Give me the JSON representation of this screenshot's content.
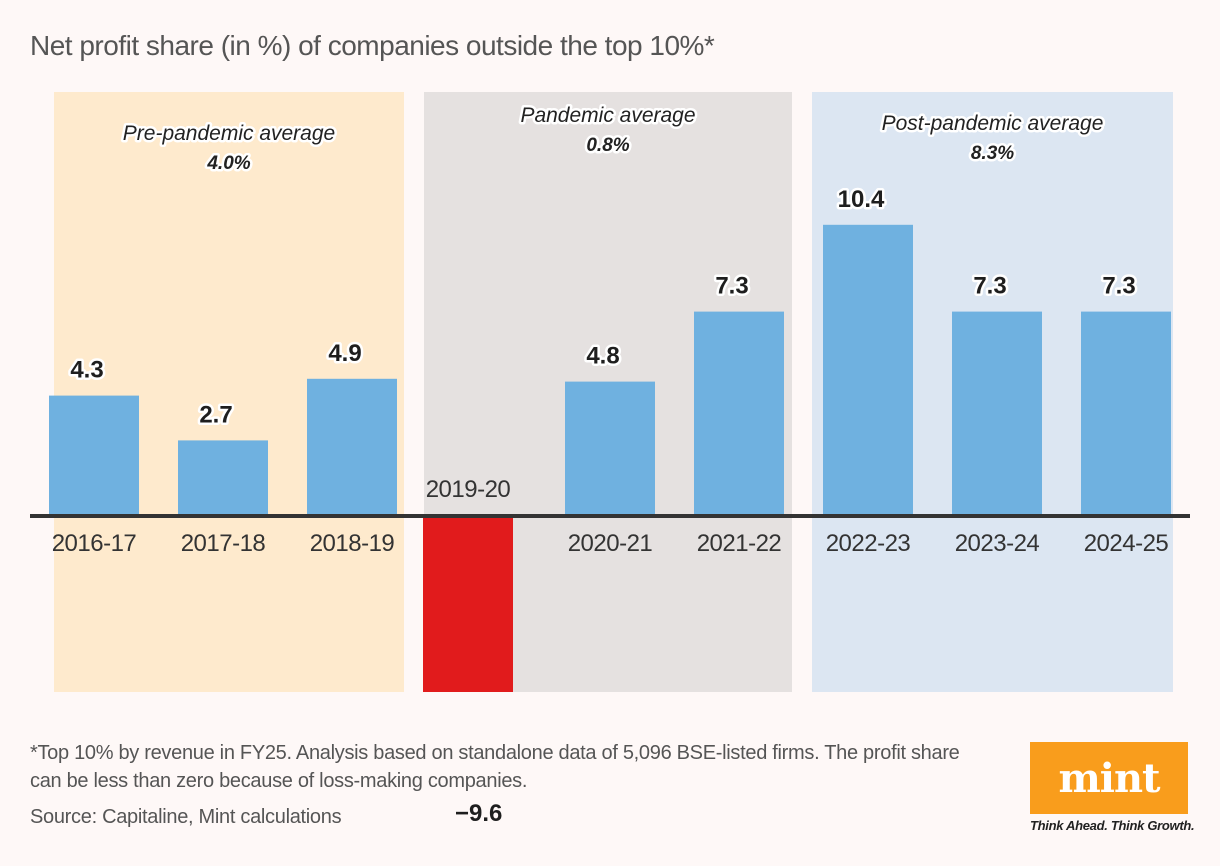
{
  "chart_data": {
    "type": "bar",
    "title": "Net profit share (in %) of companies outside the top 10%*",
    "xlabel": "",
    "ylabel": "",
    "ylim": [
      -9.6,
      10.4
    ],
    "grid": false,
    "categories": [
      "2016-17",
      "2017-18",
      "2018-19",
      "2019-20",
      "2020-21",
      "2021-22",
      "2022-23",
      "2023-24",
      "2024-25"
    ],
    "values": [
      4.3,
      2.7,
      4.9,
      -9.6,
      4.8,
      7.3,
      10.4,
      7.3,
      7.3
    ],
    "value_labels": [
      "4.3",
      "2.7",
      "4.9",
      "−9.6",
      "4.8",
      "7.3",
      "10.4",
      "7.3",
      "7.3"
    ],
    "periods": [
      {
        "name": "Pre-pandemic average",
        "average": "4.0%",
        "categories": [
          "2016-17",
          "2017-18",
          "2018-19"
        ],
        "color": "#feeacd"
      },
      {
        "name": "Pandemic average",
        "average": "0.8%",
        "categories": [
          "2019-20",
          "2020-21",
          "2021-22"
        ],
        "color": "#e5e1e0"
      },
      {
        "name": "Post-pandemic average",
        "average": "8.3%",
        "categories": [
          "2022-23",
          "2023-24",
          "2024-25"
        ],
        "color": "#dce6f2"
      }
    ],
    "colors": {
      "positive": "#6fb1e0",
      "negative": "#e11b1c",
      "baseline": "#333333"
    }
  },
  "footnote": "*Top 10% by revenue in FY25. Analysis based on standalone data of 5,096 BSE-listed firms. The profit share can be less than zero because of loss-making companies.",
  "source": "Source: Capitaline, Mint calculations",
  "brand": {
    "name": "mint",
    "tagline": "Think Ahead. Think Growth.",
    "color": "#f99d1c"
  }
}
